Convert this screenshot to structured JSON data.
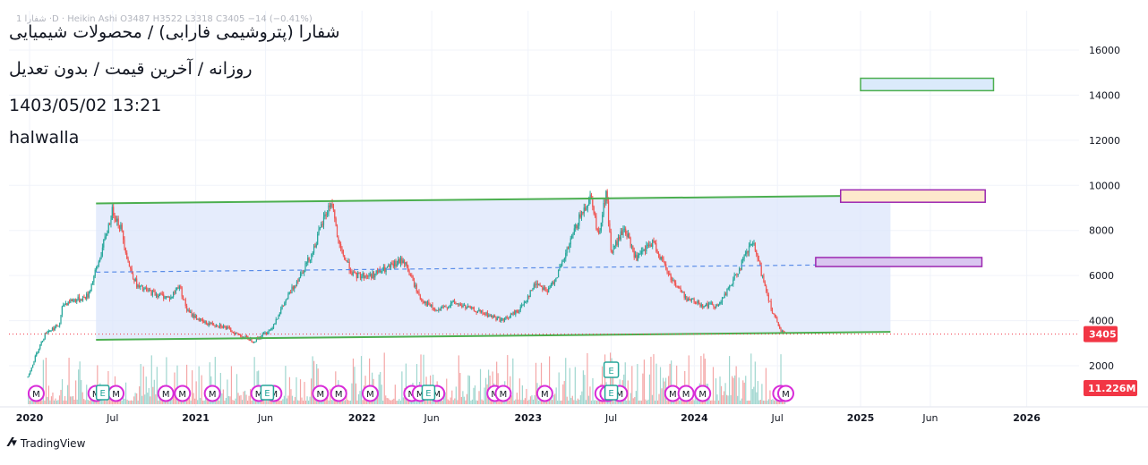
{
  "header": {
    "mini_legend": "شفارا 1 ·D · Heikin Ashi O3487 H3522 L3318 C3405 −14 (−0.41%)",
    "title_line": "شفارا (پتروشیمی فارابی) / محصولات شیمیایی",
    "subtitle_line": "روزانه / آخرین قیمت / بدون تعدیل",
    "datetime": "1403/05/02 13:21",
    "author": "halwalla"
  },
  "footer": {
    "brand": "TradingView",
    "logo": "tv-logo-icon"
  },
  "colors": {
    "up": "#26a69a",
    "down": "#ef5350",
    "channel_line": "#4caf50",
    "channel_fill": "#dce6fb",
    "midline": "#5b8de8",
    "last_price": "#f23645",
    "event_m": "#d82bd8"
  },
  "chart_data": {
    "type": "candlestick",
    "title": "شفارا (پتروشیمی فارابی) / محصولات شیمیایی",
    "interval": "daily",
    "y_ticks": [
      2000,
      4000,
      6000,
      8000,
      10000,
      12000,
      14000,
      16000
    ],
    "y_range": [
      700,
      17500
    ],
    "x_range": [
      2020.0,
      2026.25
    ],
    "x_ticks": [
      {
        "t": 2020.0,
        "label": "2020",
        "bold": true
      },
      {
        "t": 2020.5,
        "label": "Jul",
        "bold": false
      },
      {
        "t": 2021.0,
        "label": "2021",
        "bold": true
      },
      {
        "t": 2021.42,
        "label": "Jun",
        "bold": false
      },
      {
        "t": 2022.0,
        "label": "2022",
        "bold": true
      },
      {
        "t": 2022.42,
        "label": "Jun",
        "bold": false
      },
      {
        "t": 2023.0,
        "label": "2023",
        "bold": true
      },
      {
        "t": 2023.5,
        "label": "Jul",
        "bold": false
      },
      {
        "t": 2024.0,
        "label": "2024",
        "bold": true
      },
      {
        "t": 2024.5,
        "label": "Jul",
        "bold": false
      },
      {
        "t": 2025.0,
        "label": "2025",
        "bold": true
      },
      {
        "t": 2025.42,
        "label": "Jun",
        "bold": false
      },
      {
        "t": 2026.0,
        "label": "2026",
        "bold": true
      }
    ],
    "price_path": [
      [
        2019.99,
        1500
      ],
      [
        2020.05,
        2700
      ],
      [
        2020.1,
        3500
      ],
      [
        2020.18,
        3800
      ],
      [
        2020.2,
        4700
      ],
      [
        2020.25,
        4900
      ],
      [
        2020.3,
        4950
      ],
      [
        2020.35,
        5100
      ],
      [
        2020.42,
        6700
      ],
      [
        2020.5,
        8900
      ],
      [
        2020.55,
        8100
      ],
      [
        2020.6,
        6400
      ],
      [
        2020.65,
        5500
      ],
      [
        2020.75,
        5200
      ],
      [
        2020.85,
        5000
      ],
      [
        2020.9,
        5600
      ],
      [
        2020.95,
        4400
      ],
      [
        2021.05,
        3900
      ],
      [
        2021.15,
        3800
      ],
      [
        2021.25,
        3400
      ],
      [
        2021.35,
        3100
      ],
      [
        2021.45,
        3600
      ],
      [
        2021.55,
        5000
      ],
      [
        2021.7,
        7000
      ],
      [
        2021.78,
        8700
      ],
      [
        2021.82,
        9300
      ],
      [
        2021.86,
        7300
      ],
      [
        2021.95,
        6000
      ],
      [
        2022.05,
        6000
      ],
      [
        2022.15,
        6300
      ],
      [
        2022.25,
        6700
      ],
      [
        2022.35,
        5000
      ],
      [
        2022.45,
        4400
      ],
      [
        2022.55,
        4800
      ],
      [
        2022.7,
        4400
      ],
      [
        2022.85,
        4000
      ],
      [
        2022.95,
        4500
      ],
      [
        2023.05,
        5700
      ],
      [
        2023.12,
        5300
      ],
      [
        2023.2,
        6400
      ],
      [
        2023.3,
        8400
      ],
      [
        2023.38,
        9600
      ],
      [
        2023.42,
        7700
      ],
      [
        2023.47,
        9700
      ],
      [
        2023.5,
        7000
      ],
      [
        2023.58,
        8100
      ],
      [
        2023.65,
        6700
      ],
      [
        2023.75,
        7500
      ],
      [
        2023.85,
        6000
      ],
      [
        2023.95,
        5000
      ],
      [
        2024.05,
        4700
      ],
      [
        2024.15,
        4700
      ],
      [
        2024.25,
        6000
      ],
      [
        2024.35,
        7500
      ],
      [
        2024.4,
        6200
      ],
      [
        2024.47,
        4400
      ],
      [
        2024.52,
        3500
      ],
      [
        2024.55,
        3405
      ]
    ],
    "last_close": 3405,
    "last_label": "3405",
    "ohlc_last": {
      "open": 3487,
      "high": 3522,
      "low": 3318,
      "close": 3405,
      "change": -14,
      "change_pct": -0.41
    },
    "volume_label": "11.226M",
    "volume_max_m": 15,
    "channel": {
      "upper": [
        [
          2020.4,
          9200
        ],
        [
          2025.18,
          9550
        ]
      ],
      "lower": [
        [
          2020.4,
          3150
        ],
        [
          2025.18,
          3500
        ]
      ],
      "mid": [
        [
          2020.4,
          6150
        ],
        [
          2025.18,
          6500
        ]
      ]
    },
    "zones": [
      {
        "name": "zone-top-blue",
        "t1": 2025.0,
        "t2": 2025.8,
        "y1": 14200,
        "y2": 14750,
        "fill": "#dbeafb",
        "stroke": "#4caf50"
      },
      {
        "name": "zone-upper-peach",
        "t1": 2024.88,
        "t2": 2025.75,
        "y1": 9250,
        "y2": 9800,
        "fill": "#fde8cc",
        "stroke": "#9c27b0"
      },
      {
        "name": "zone-mid-purple",
        "t1": 2024.73,
        "t2": 2025.73,
        "y1": 6400,
        "y2": 6800,
        "fill": "#d9c6f0",
        "stroke": "#9c27b0"
      }
    ],
    "events_m": [
      2020.04,
      2020.4,
      2020.52,
      2020.82,
      2020.92,
      2021.1,
      2021.38,
      2021.47,
      2021.75,
      2021.86,
      2022.05,
      2022.3,
      2022.35,
      2022.45,
      2022.8,
      2022.85,
      2023.1,
      2023.45,
      2023.48,
      2023.55,
      2023.87,
      2023.95,
      2024.05,
      2024.52,
      2024.55
    ],
    "events_e": [
      2020.44,
      2021.43,
      2022.4,
      2023.5
    ],
    "event_e_label": "E",
    "event_m_label": "M",
    "event_d_label": "D",
    "e_flag_extra": 2023.5
  }
}
